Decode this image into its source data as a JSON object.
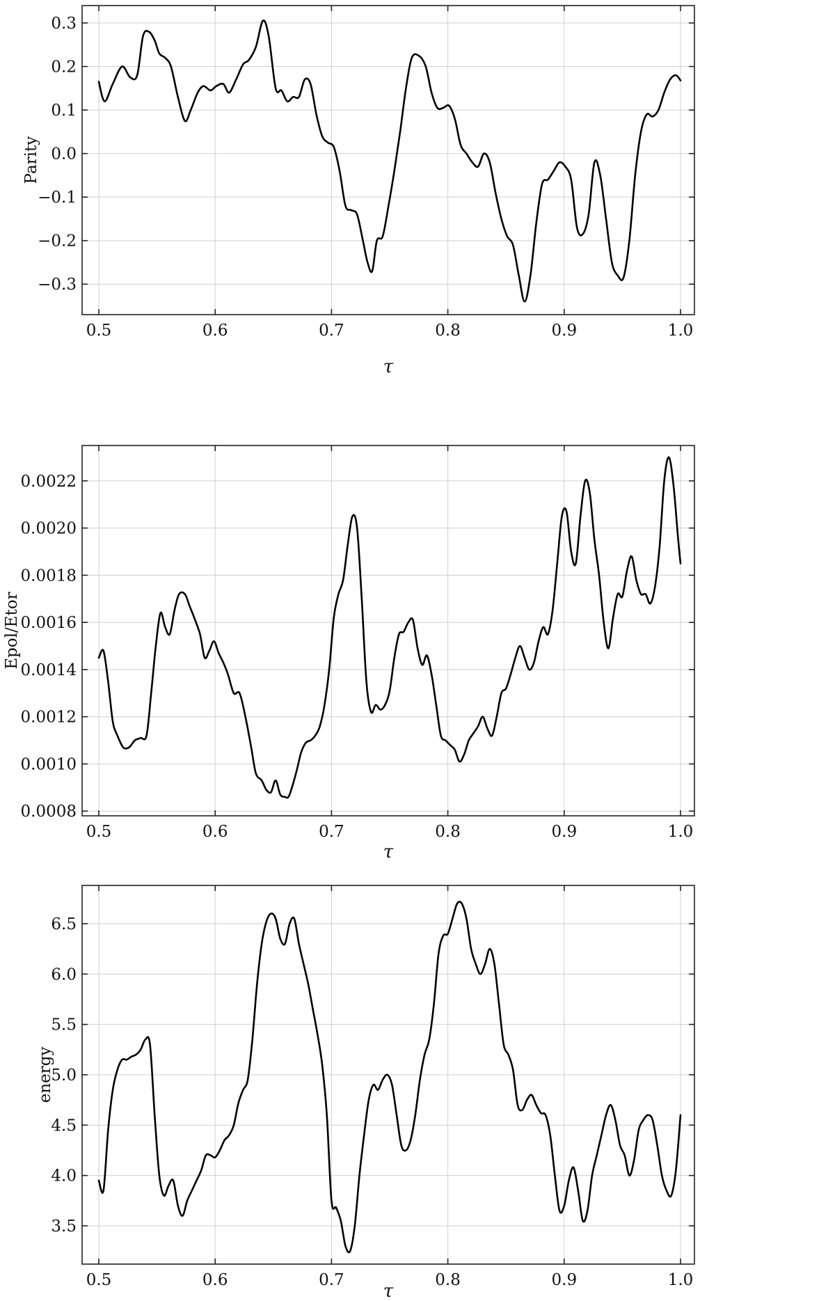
{
  "chart_data": [
    {
      "type": "line",
      "xlabel": "τ",
      "ylabel": "Parity",
      "xlim": [
        0.5,
        1.0
      ],
      "ylim": [
        -0.37,
        0.34
      ],
      "xticks": [
        "0.5",
        "0.6",
        "0.7",
        "0.8",
        "0.9",
        "1.0"
      ],
      "yticks": [
        "0.3",
        "0.2",
        "0.1",
        "0.0",
        "−0.1",
        "−0.2",
        "−0.3"
      ],
      "ytick_values": [
        0.3,
        0.2,
        0.1,
        0.0,
        -0.1,
        -0.2,
        -0.3
      ],
      "grid": true,
      "series": [
        {
          "color": "#000000",
          "x": [
            0.5,
            0.505,
            0.512,
            0.52,
            0.527,
            0.533,
            0.538,
            0.543,
            0.548,
            0.552,
            0.557,
            0.562,
            0.568,
            0.574,
            0.579,
            0.585,
            0.59,
            0.596,
            0.601,
            0.607,
            0.612,
            0.618,
            0.624,
            0.629,
            0.635,
            0.641,
            0.646,
            0.652,
            0.657,
            0.662,
            0.667,
            0.672,
            0.677,
            0.682,
            0.687,
            0.692,
            0.697,
            0.702,
            0.707,
            0.712,
            0.717,
            0.722,
            0.727,
            0.731,
            0.735,
            0.739,
            0.744,
            0.749,
            0.754,
            0.759,
            0.764,
            0.769,
            0.775,
            0.781,
            0.786,
            0.791,
            0.796,
            0.801,
            0.806,
            0.811,
            0.816,
            0.821,
            0.826,
            0.831,
            0.836,
            0.841,
            0.846,
            0.851,
            0.856,
            0.861,
            0.866,
            0.871,
            0.876,
            0.881,
            0.886,
            0.891,
            0.896,
            0.901,
            0.906,
            0.911,
            0.916,
            0.921,
            0.926,
            0.931,
            0.936,
            0.941,
            0.946,
            0.951,
            0.956,
            0.961,
            0.966,
            0.971,
            0.976,
            0.981,
            0.986,
            0.991,
            0.996,
            1.0
          ],
          "y": [
            0.165,
            0.12,
            0.16,
            0.2,
            0.175,
            0.18,
            0.27,
            0.28,
            0.26,
            0.23,
            0.22,
            0.2,
            0.13,
            0.075,
            0.1,
            0.14,
            0.155,
            0.145,
            0.155,
            0.16,
            0.14,
            0.17,
            0.205,
            0.215,
            0.245,
            0.305,
            0.27,
            0.15,
            0.145,
            0.12,
            0.13,
            0.13,
            0.17,
            0.16,
            0.09,
            0.04,
            0.025,
            0.015,
            -0.04,
            -0.12,
            -0.13,
            -0.14,
            -0.2,
            -0.25,
            -0.27,
            -0.2,
            -0.19,
            -0.12,
            -0.04,
            0.05,
            0.15,
            0.22,
            0.225,
            0.2,
            0.14,
            0.105,
            0.105,
            0.11,
            0.08,
            0.02,
            0.0,
            -0.02,
            -0.03,
            0.0,
            -0.02,
            -0.09,
            -0.15,
            -0.19,
            -0.21,
            -0.28,
            -0.34,
            -0.28,
            -0.16,
            -0.07,
            -0.06,
            -0.04,
            -0.02,
            -0.03,
            -0.06,
            -0.17,
            -0.185,
            -0.14,
            -0.02,
            -0.05,
            -0.15,
            -0.25,
            -0.28,
            -0.285,
            -0.2,
            -0.05,
            0.05,
            0.09,
            0.085,
            0.1,
            0.14,
            0.17,
            0.18,
            0.168
          ]
        }
      ]
    },
    {
      "type": "line",
      "xlabel": "τ",
      "ylabel": "Epol/Etor",
      "xlim": [
        0.5,
        1.0
      ],
      "ylim": [
        0.00078,
        0.00235
      ],
      "xticks": [
        "0.5",
        "0.6",
        "0.7",
        "0.8",
        "0.9",
        "1.0"
      ],
      "yticks": [
        "0.0022",
        "0.0020",
        "0.0018",
        "0.0016",
        "0.0014",
        "0.0012",
        "0.0010",
        "0.0008"
      ],
      "ytick_values": [
        0.0022,
        0.002,
        0.0018,
        0.0016,
        0.0014,
        0.0012,
        0.001,
        0.0008
      ],
      "grid": true,
      "series": [
        {
          "color": "#000000",
          "x": [
            0.5,
            0.504,
            0.508,
            0.512,
            0.516,
            0.521,
            0.526,
            0.531,
            0.536,
            0.541,
            0.545,
            0.549,
            0.553,
            0.557,
            0.561,
            0.565,
            0.569,
            0.574,
            0.578,
            0.582,
            0.587,
            0.591,
            0.595,
            0.599,
            0.603,
            0.607,
            0.611,
            0.616,
            0.621,
            0.626,
            0.631,
            0.635,
            0.64,
            0.644,
            0.648,
            0.652,
            0.656,
            0.66,
            0.663,
            0.666,
            0.67,
            0.674,
            0.678,
            0.682,
            0.686,
            0.69,
            0.694,
            0.698,
            0.702,
            0.706,
            0.71,
            0.714,
            0.718,
            0.722,
            0.726,
            0.73,
            0.734,
            0.738,
            0.742,
            0.746,
            0.75,
            0.754,
            0.758,
            0.762,
            0.766,
            0.77,
            0.774,
            0.778,
            0.782,
            0.786,
            0.79,
            0.794,
            0.798,
            0.802,
            0.806,
            0.81,
            0.814,
            0.818,
            0.822,
            0.826,
            0.83,
            0.834,
            0.838,
            0.842,
            0.846,
            0.85,
            0.854,
            0.858,
            0.862,
            0.866,
            0.87,
            0.874,
            0.878,
            0.882,
            0.886,
            0.89,
            0.894,
            0.898,
            0.902,
            0.906,
            0.91,
            0.914,
            0.918,
            0.922,
            0.926,
            0.93,
            0.934,
            0.938,
            0.942,
            0.946,
            0.95,
            0.954,
            0.958,
            0.962,
            0.966,
            0.97,
            0.974,
            0.978,
            0.982,
            0.986,
            0.99,
            0.994,
            0.998,
            1.0
          ],
          "y": [
            0.00145,
            0.00148,
            0.00135,
            0.00118,
            0.00112,
            0.00107,
            0.00107,
            0.0011,
            0.00111,
            0.00112,
            0.0013,
            0.0015,
            0.00164,
            0.00158,
            0.00155,
            0.00165,
            0.00172,
            0.00172,
            0.00167,
            0.00162,
            0.00155,
            0.00145,
            0.00148,
            0.00152,
            0.00147,
            0.00143,
            0.00138,
            0.0013,
            0.0013,
            0.0012,
            0.00107,
            0.00096,
            0.00093,
            0.00089,
            0.00088,
            0.00093,
            0.00087,
            0.00086,
            0.00086,
            0.0009,
            0.00097,
            0.00105,
            0.00109,
            0.0011,
            0.00112,
            0.00116,
            0.00125,
            0.0014,
            0.00162,
            0.00172,
            0.00178,
            0.00193,
            0.00205,
            0.002,
            0.0017,
            0.00135,
            0.00122,
            0.00125,
            0.00123,
            0.00125,
            0.00131,
            0.00145,
            0.00155,
            0.00156,
            0.0016,
            0.00161,
            0.00149,
            0.00142,
            0.00146,
            0.00138,
            0.00125,
            0.00112,
            0.0011,
            0.00108,
            0.00106,
            0.00101,
            0.00104,
            0.0011,
            0.00113,
            0.00116,
            0.0012,
            0.00115,
            0.00112,
            0.0012,
            0.0013,
            0.00132,
            0.00138,
            0.00145,
            0.0015,
            0.00145,
            0.0014,
            0.00143,
            0.00152,
            0.00158,
            0.00155,
            0.00165,
            0.00185,
            0.00205,
            0.00207,
            0.0019,
            0.00185,
            0.00205,
            0.0022,
            0.00215,
            0.00195,
            0.0018,
            0.0016,
            0.00149,
            0.00162,
            0.00172,
            0.00171,
            0.00182,
            0.00188,
            0.00178,
            0.00172,
            0.00172,
            0.00168,
            0.00175,
            0.00192,
            0.0022,
            0.0023,
            0.00218,
            0.00195,
            0.00185
          ]
        }
      ]
    },
    {
      "type": "line",
      "xlabel": "τ",
      "ylabel": "energy",
      "xlim": [
        0.5,
        1.0
      ],
      "ylim": [
        3.12,
        6.88
      ],
      "xticks": [
        "0.5",
        "0.6",
        "0.7",
        "0.8",
        "0.9",
        "1.0"
      ],
      "yticks": [
        "6.5",
        "6.0",
        "5.5",
        "5.0",
        "4.5",
        "4.0",
        "3.5"
      ],
      "ytick_values": [
        6.5,
        6.0,
        5.5,
        5.0,
        4.5,
        4.0,
        3.5
      ],
      "grid": true,
      "series": [
        {
          "color": "#000000",
          "x": [
            0.5,
            0.504,
            0.508,
            0.512,
            0.516,
            0.52,
            0.524,
            0.528,
            0.532,
            0.536,
            0.54,
            0.544,
            0.548,
            0.552,
            0.556,
            0.56,
            0.564,
            0.568,
            0.572,
            0.576,
            0.58,
            0.584,
            0.588,
            0.592,
            0.596,
            0.6,
            0.604,
            0.608,
            0.612,
            0.616,
            0.62,
            0.624,
            0.628,
            0.632,
            0.636,
            0.64,
            0.644,
            0.648,
            0.652,
            0.656,
            0.66,
            0.664,
            0.668,
            0.672,
            0.676,
            0.68,
            0.684,
            0.688,
            0.692,
            0.696,
            0.7,
            0.704,
            0.708,
            0.712,
            0.716,
            0.72,
            0.724,
            0.728,
            0.732,
            0.736,
            0.74,
            0.744,
            0.748,
            0.752,
            0.756,
            0.76,
            0.764,
            0.768,
            0.772,
            0.776,
            0.78,
            0.784,
            0.788,
            0.792,
            0.796,
            0.8,
            0.804,
            0.808,
            0.812,
            0.816,
            0.82,
            0.824,
            0.828,
            0.832,
            0.836,
            0.84,
            0.844,
            0.848,
            0.852,
            0.856,
            0.86,
            0.864,
            0.868,
            0.872,
            0.876,
            0.88,
            0.884,
            0.888,
            0.892,
            0.896,
            0.9,
            0.904,
            0.908,
            0.912,
            0.916,
            0.92,
            0.924,
            0.928,
            0.932,
            0.936,
            0.94,
            0.944,
            0.948,
            0.952,
            0.956,
            0.96,
            0.964,
            0.968,
            0.972,
            0.976,
            0.98,
            0.984,
            0.988,
            0.992,
            0.996,
            1.0
          ],
          "y": [
            3.95,
            3.85,
            4.45,
            4.85,
            5.05,
            5.15,
            5.15,
            5.18,
            5.2,
            5.25,
            5.35,
            5.3,
            4.6,
            4.0,
            3.8,
            3.9,
            3.95,
            3.7,
            3.6,
            3.75,
            3.85,
            3.95,
            4.05,
            4.2,
            4.2,
            4.18,
            4.25,
            4.35,
            4.4,
            4.5,
            4.72,
            4.85,
            4.95,
            5.35,
            5.9,
            6.3,
            6.52,
            6.6,
            6.55,
            6.35,
            6.3,
            6.5,
            6.55,
            6.3,
            6.1,
            5.9,
            5.65,
            5.4,
            5.1,
            4.6,
            3.75,
            3.68,
            3.55,
            3.3,
            3.25,
            3.5,
            4.0,
            4.4,
            4.75,
            4.9,
            4.85,
            4.95,
            5.0,
            4.9,
            4.6,
            4.3,
            4.25,
            4.35,
            4.6,
            4.95,
            5.2,
            5.35,
            5.7,
            6.2,
            6.38,
            6.4,
            6.55,
            6.7,
            6.7,
            6.55,
            6.25,
            6.1,
            6.0,
            6.1,
            6.25,
            6.1,
            5.7,
            5.3,
            5.2,
            5.05,
            4.7,
            4.65,
            4.75,
            4.8,
            4.7,
            4.62,
            4.6,
            4.4,
            4.0,
            3.65,
            3.7,
            3.95,
            4.08,
            3.85,
            3.55,
            3.65,
            4.0,
            4.2,
            4.4,
            4.6,
            4.7,
            4.55,
            4.3,
            4.2,
            4.0,
            4.15,
            4.45,
            4.55,
            4.6,
            4.55,
            4.3,
            4.0,
            3.85,
            3.8,
            4.05,
            4.6
          ]
        }
      ]
    }
  ]
}
